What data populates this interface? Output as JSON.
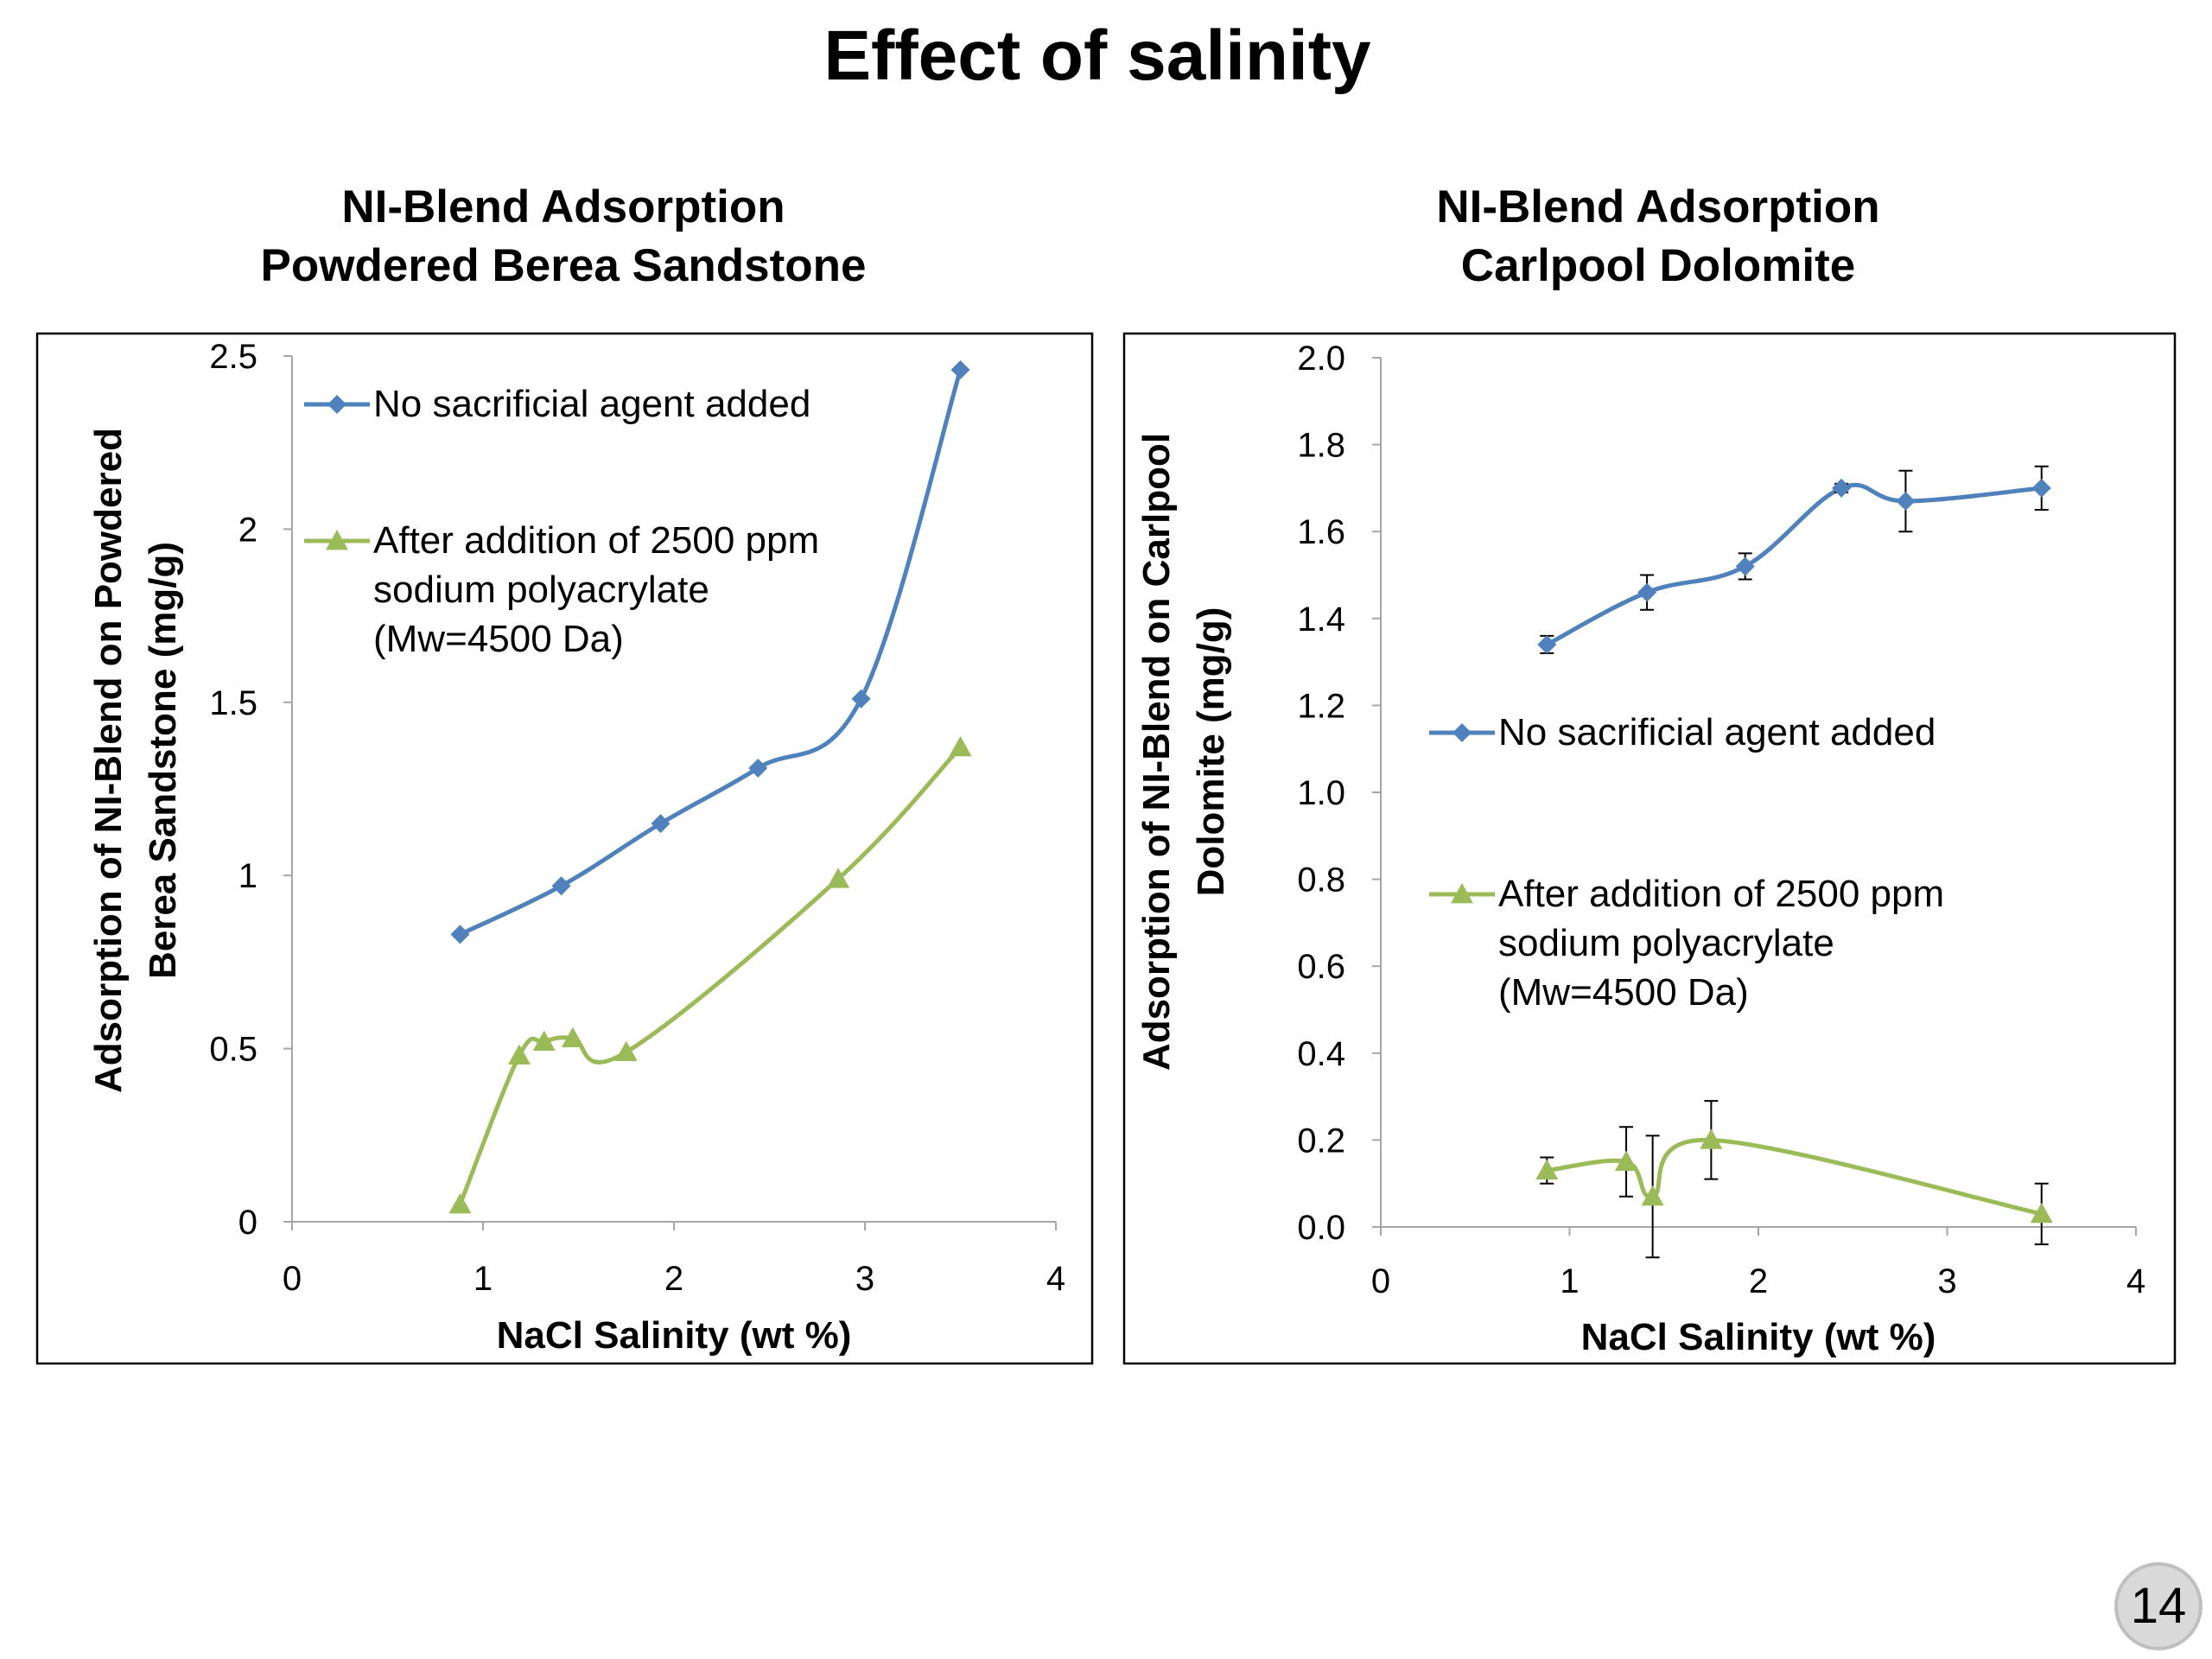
{
  "slide": {
    "title": "Effect of salinity",
    "page_number": "14"
  },
  "colors": {
    "series_blue": "#4f81bd",
    "series_green": "#9bbb59",
    "axis": "#a6a6a6",
    "frame": "#000000"
  },
  "chart_data": [
    {
      "type": "line",
      "title_lines": [
        "NI-Blend Adsorption",
        "Powdered Berea Sandstone"
      ],
      "xlabel": "NaCl Salinity (wt %)",
      "ylabel_lines": [
        "Adsorption of NI-Blend on Powdered",
        "Berea Sandstone (mg/g)"
      ],
      "xlim": [
        0,
        4
      ],
      "ylim": [
        0,
        2.5
      ],
      "x_ticks": [
        "0",
        "1",
        "2",
        "3",
        "4"
      ],
      "y_ticks": [
        "0",
        "0.5",
        "1",
        "1.5",
        "2",
        "2.5"
      ],
      "grid": false,
      "legend_position": "top-left inside plot",
      "series": [
        {
          "name": "No sacrificial agent added",
          "legend_lines": [
            "No sacrificial agent added"
          ],
          "marker": "diamond",
          "color": "#4f81bd",
          "x": [
            0.88,
            1.41,
            1.93,
            2.44,
            2.98,
            3.5
          ],
          "y": [
            0.83,
            0.97,
            1.15,
            1.31,
            1.51,
            2.46
          ]
        },
        {
          "name": "After addition of 2500 ppm sodium polyacrylate (Mw=4500 Da)",
          "legend_lines": [
            "After addition of 2500 ppm",
            "sodium polyacrylate",
            "(Mw=4500 Da)"
          ],
          "marker": "triangle",
          "color": "#9bbb59",
          "x": [
            0.88,
            1.19,
            1.32,
            1.47,
            1.75,
            2.86,
            3.5
          ],
          "y": [
            0.05,
            0.48,
            0.52,
            0.53,
            0.49,
            0.99,
            1.37
          ]
        }
      ]
    },
    {
      "type": "line",
      "title_lines": [
        "NI-Blend Adsorption",
        "Carlpool Dolomite"
      ],
      "xlabel": "NaCl Salinity (wt %)",
      "ylabel_lines": [
        "Adsorption of NI-Blend on Carlpool",
        "Dolomite (mg/g)"
      ],
      "xlim": [
        0,
        4
      ],
      "ylim": [
        0,
        2
      ],
      "x_ticks": [
        "0",
        "1",
        "2",
        "3",
        "4"
      ],
      "y_ticks": [
        "0.0",
        "0.2",
        "0.4",
        "0.6",
        "0.8",
        "1.0",
        "1.2",
        "1.4",
        "1.6",
        "1.8",
        "2.0"
      ],
      "grid": false,
      "legend_position": "middle-left inside plot",
      "series": [
        {
          "name": "No sacrificial agent added",
          "legend_lines": [
            "No sacrificial agent added"
          ],
          "marker": "diamond",
          "color": "#4f81bd",
          "x": [
            0.88,
            1.41,
            1.93,
            2.44,
            2.78,
            3.5
          ],
          "y": [
            1.34,
            1.46,
            1.52,
            1.7,
            1.67,
            1.7
          ],
          "error": [
            0.02,
            0.04,
            0.03,
            0.01,
            0.07,
            0.05
          ]
        },
        {
          "name": "After addition of 2500 ppm sodium polyacrylate (Mw=4500 Da)",
          "legend_lines": [
            "After addition of 2500 ppm",
            "sodium polyacrylate",
            "(Mw=4500 Da)"
          ],
          "marker": "triangle",
          "color": "#9bbb59",
          "x": [
            0.88,
            1.3,
            1.44,
            1.75,
            3.5
          ],
          "y": [
            0.13,
            0.15,
            0.07,
            0.2,
            0.03
          ],
          "error": [
            0.03,
            0.08,
            0.14,
            0.09,
            0.07
          ]
        }
      ]
    }
  ]
}
